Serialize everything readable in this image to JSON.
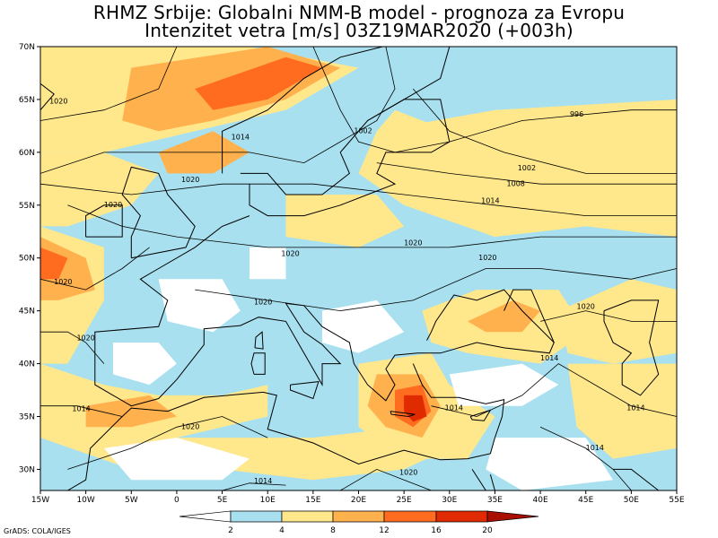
{
  "title": {
    "line1": "RHMZ Srbije: Globalni NMM-B model - prognoza za Evropu",
    "line2": "Intenzitet vetra [m/s] 03Z19MAR2020 (+003h)"
  },
  "map": {
    "lon_range": [
      -15,
      55
    ],
    "lat_range": [
      28,
      70
    ],
    "lon_ticks": [
      "15W",
      "10W",
      "5W",
      "0",
      "5E",
      "10E",
      "15E",
      "20E",
      "25E",
      "30E",
      "35E",
      "40E",
      "45E",
      "50E",
      "55E"
    ],
    "lat_ticks": [
      "70N",
      "65N",
      "60N",
      "55N",
      "50N",
      "45N",
      "40N",
      "35N",
      "30N"
    ],
    "isobar_labels": [
      {
        "text": "1020",
        "lon": -13,
        "lat": 64.6
      },
      {
        "text": "1014",
        "lon": 7,
        "lat": 61.2
      },
      {
        "text": "1002",
        "lon": 20.5,
        "lat": 61.8
      },
      {
        "text": "996",
        "lon": 44,
        "lat": 63.4
      },
      {
        "text": "1020",
        "lon": 1.5,
        "lat": 57.2
      },
      {
        "text": "1002",
        "lon": 38.5,
        "lat": 58.3
      },
      {
        "text": "1008",
        "lon": 37.3,
        "lat": 56.8
      },
      {
        "text": "1014",
        "lon": 34.5,
        "lat": 55.2
      },
      {
        "text": "1020",
        "lon": -7,
        "lat": 54.8
      },
      {
        "text": "1020",
        "lon": 26,
        "lat": 51.2
      },
      {
        "text": "1020",
        "lon": 12.5,
        "lat": 50.2
      },
      {
        "text": "1020",
        "lon": 34.2,
        "lat": 49.8
      },
      {
        "text": "1020",
        "lon": -12.5,
        "lat": 47.5
      },
      {
        "text": "1020",
        "lon": 9.5,
        "lat": 45.6
      },
      {
        "text": "1020",
        "lon": 45,
        "lat": 45.2
      },
      {
        "text": "1020",
        "lon": -10,
        "lat": 42.2
      },
      {
        "text": "1014",
        "lon": 41,
        "lat": 40.3
      },
      {
        "text": "1014",
        "lon": -10.5,
        "lat": 35.5
      },
      {
        "text": "1014",
        "lon": 30.5,
        "lat": 35.6
      },
      {
        "text": "1014",
        "lon": 50.5,
        "lat": 35.6
      },
      {
        "text": "1020",
        "lon": 1.5,
        "lat": 33.8
      },
      {
        "text": "1014",
        "lon": 46,
        "lat": 31.8
      },
      {
        "text": "1020",
        "lon": 25.5,
        "lat": 29.5
      },
      {
        "text": "1014",
        "lon": 9.5,
        "lat": 28.7
      }
    ]
  },
  "colorbar": {
    "labels": [
      "2",
      "4",
      "8",
      "12",
      "16",
      "20"
    ],
    "colors": [
      "#ffffff",
      "#a8e0ef",
      "#ffe78c",
      "#ffb14d",
      "#ff6b1f",
      "#e02a00",
      "#a80f00"
    ]
  },
  "colors": {
    "calm": "#ffffff",
    "light": "#a8e0ef",
    "moderate": "#ffe78c",
    "fresh": "#ffb14d",
    "strong": "#ff6b1f",
    "gale": "#e02a00",
    "coast": "#000000",
    "grid_frame": "#000000"
  },
  "credit": "GrADS: COLA/IGES"
}
